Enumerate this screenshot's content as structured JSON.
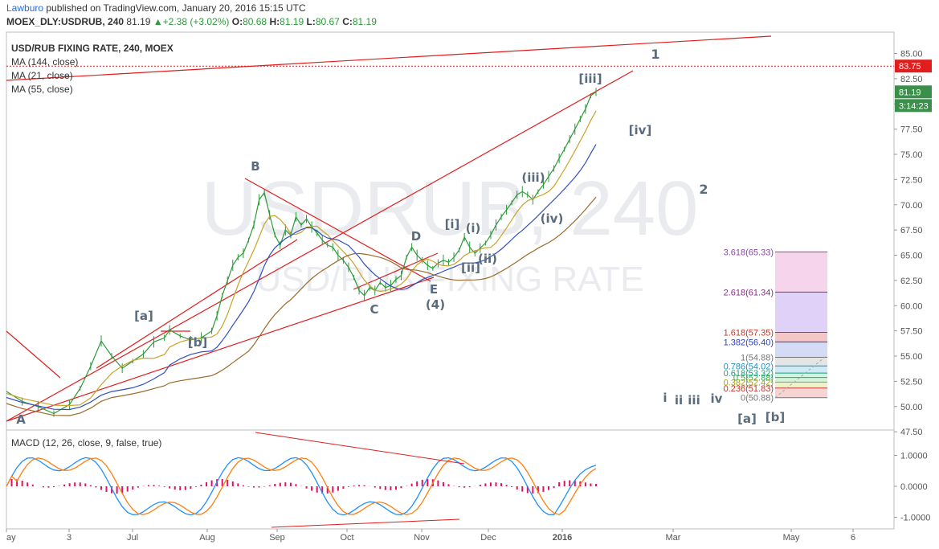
{
  "header": {
    "publisher_name": "Lawburo",
    "publisher_text": " published on TradingView.com, January 20, 2016 15:15 UTC",
    "symbol": "MOEX_DLY:USDRUB, 240",
    "last": "81.19",
    "change": "+2.38 (+3.02%)",
    "open_label": "O:",
    "open": "80.68",
    "high_label": "H:",
    "high": "81.19",
    "low_label": "L:",
    "low": "80.67",
    "close_label": "C:",
    "close": "81.19"
  },
  "legend": {
    "title": "USD/RUB FIXING RATE, 240, MOEX",
    "ma144": "MA (144, close)",
    "ma21": "MA (21, close)",
    "ma55": "MA (55, close)",
    "macd": "MACD (12, 26, close, 9, false, true)"
  },
  "watermark": {
    "symbol": "USDRUB, 240",
    "description": "USD/RUB FIXING RATE"
  },
  "colors": {
    "price": "#2b9a3a",
    "macd": "#1e90ff",
    "signal": "#ff7f0e",
    "hist": "#e0115f",
    "ma21": "#c9a227",
    "ma55": "#2f4fbf",
    "ma144": "#9a6a2a",
    "trend": "#e11d1d",
    "label": "#5a6b7d"
  },
  "chart_data": [
    {
      "type": "line",
      "title": "USD/RUB FIXING RATE, 240, MOEX",
      "ylim": [
        47.5,
        86.25
      ],
      "y_ticks": [
        "85.00",
        "82.50",
        "80.00",
        "77.50",
        "75.00",
        "72.50",
        "70.00",
        "67.50",
        "65.00",
        "62.50",
        "60.00",
        "57.50",
        "55.00",
        "52.50",
        "50.00",
        "47.50"
      ],
      "x_ticks": [
        "ay",
        "3",
        "Jul",
        "Aug",
        "Sep",
        "Oct",
        "Nov",
        "Dec",
        "2016",
        "Mar",
        "May",
        "6"
      ],
      "price_badges": [
        "83.75",
        "81.19",
        "3:14:23"
      ],
      "series": [
        {
          "name": "MA (144, close)",
          "values": []
        },
        {
          "name": "MA (21, close)",
          "values": []
        },
        {
          "name": "MA (55, close)",
          "values": []
        }
      ],
      "price_path": [
        [
          0,
          51.5
        ],
        [
          3,
          50.5
        ],
        [
          6,
          50.0
        ],
        [
          9,
          49.3
        ],
        [
          12,
          50.2
        ],
        [
          14,
          51.8
        ],
        [
          16,
          54.0
        ],
        [
          18,
          56.5
        ],
        [
          20,
          55.0
        ],
        [
          22,
          53.8
        ],
        [
          24,
          54.5
        ],
        [
          26,
          55.2
        ],
        [
          28,
          56.4
        ],
        [
          30,
          56.8
        ],
        [
          31,
          57.6
        ],
        [
          33,
          57.0
        ],
        [
          35,
          56.6
        ],
        [
          37,
          56.8
        ],
        [
          39,
          57.5
        ],
        [
          40,
          59.0
        ],
        [
          41,
          61.0
        ],
        [
          42,
          62.5
        ],
        [
          43,
          64.0
        ],
        [
          44,
          64.8
        ],
        [
          45,
          65.2
        ],
        [
          46,
          66.5
        ],
        [
          47,
          68.0
        ],
        [
          48,
          70.5
        ],
        [
          49,
          71.2
        ],
        [
          50,
          69.0
        ],
        [
          51,
          67.0
        ],
        [
          52,
          66.0
        ],
        [
          53,
          67.5
        ],
        [
          54,
          67.0
        ],
        [
          55,
          68.8
        ],
        [
          56,
          68.0
        ],
        [
          57,
          68.6
        ],
        [
          58,
          67.8
        ],
        [
          59,
          67.2
        ],
        [
          60,
          66.5
        ],
        [
          61,
          66.0
        ],
        [
          62,
          65.8
        ],
        [
          63,
          65.0
        ],
        [
          64,
          64.5
        ],
        [
          65,
          63.8
        ],
        [
          66,
          62.8
        ],
        [
          67,
          61.5
        ],
        [
          68,
          61.0
        ],
        [
          69,
          61.8
        ],
        [
          70,
          61.5
        ],
        [
          71,
          62.3
        ],
        [
          72,
          61.8
        ],
        [
          73,
          62.0
        ],
        [
          74,
          62.6
        ],
        [
          75,
          63.0
        ],
        [
          76,
          64.8
        ],
        [
          77,
          65.8
        ],
        [
          78,
          65.0
        ],
        [
          79,
          64.5
        ],
        [
          80,
          64.0
        ],
        [
          81,
          63.7
        ],
        [
          82,
          64.2
        ],
        [
          83,
          64.5
        ],
        [
          84,
          64.3
        ],
        [
          85,
          64.8
        ],
        [
          86,
          65.5
        ],
        [
          87,
          66.8
        ],
        [
          88,
          65.8
        ],
        [
          89,
          65.2
        ],
        [
          90,
          65.7
        ],
        [
          91,
          66.2
        ],
        [
          92,
          67.0
        ],
        [
          93,
          68.0
        ],
        [
          94,
          68.8
        ],
        [
          95,
          69.5
        ],
        [
          96,
          70.2
        ],
        [
          97,
          71.0
        ],
        [
          98,
          71.3
        ],
        [
          99,
          71.0
        ],
        [
          100,
          70.5
        ],
        [
          101,
          71.3
        ],
        [
          102,
          72.0
        ],
        [
          103,
          72.8
        ],
        [
          104,
          73.6
        ],
        [
          105,
          74.6
        ],
        [
          106,
          75.5
        ],
        [
          107,
          76.5
        ],
        [
          108,
          77.5
        ],
        [
          109,
          78.5
        ],
        [
          110,
          79.5
        ],
        [
          111,
          80.8
        ],
        [
          112,
          81.19
        ]
      ],
      "elliott_labels": [
        "1",
        "2",
        "[iii]",
        "[iv]",
        "B",
        "D",
        "E",
        "C",
        "(4)",
        "[i]",
        "(i)",
        "(ii)",
        "[ii]",
        "(iii)",
        "(iv)",
        "[a]",
        "[b]",
        "A",
        "i",
        "ii",
        "iii",
        "iv",
        "[a]",
        "[b]"
      ],
      "fibonacci": [
        {
          "label": "3.618(65.33)",
          "value": 65.33,
          "color": "#8e44ad"
        },
        {
          "label": "2.618(61.34)",
          "value": 61.34,
          "color": "#8e2c8e"
        },
        {
          "label": "1.618(57.35)",
          "value": 57.35,
          "color": "#c0392b"
        },
        {
          "label": "1.382(56.40)",
          "value": 56.4,
          "color": "#2f3fbf"
        },
        {
          "label": "1(54.88)",
          "value": 54.88,
          "color": "#777777"
        },
        {
          "label": "0.786(54.02)",
          "value": 54.02,
          "color": "#1f8fbf"
        },
        {
          "label": "0.618(53.32)",
          "value": 53.32,
          "color": "#16a085"
        },
        {
          "label": "0.5(52.88)",
          "value": 52.88,
          "color": "#27ae60"
        },
        {
          "label": "0.382(52.42)",
          "value": 52.42,
          "color": "#a4a11f"
        },
        {
          "label": "0.236(51.83)",
          "value": 51.83,
          "color": "#c0392b"
        },
        {
          "label": "0(50.88)",
          "value": 50.88,
          "color": "#777777"
        }
      ]
    },
    {
      "type": "line",
      "title": "MACD (12, 26, close, 9, false, true)",
      "ylim": [
        -1.3,
        1.7
      ],
      "y_ticks": [
        "1.0000",
        "0.0000",
        "-1.0000"
      ],
      "series": [
        {
          "name": "MACD",
          "values": []
        },
        {
          "name": "Signal",
          "values": []
        }
      ]
    }
  ]
}
